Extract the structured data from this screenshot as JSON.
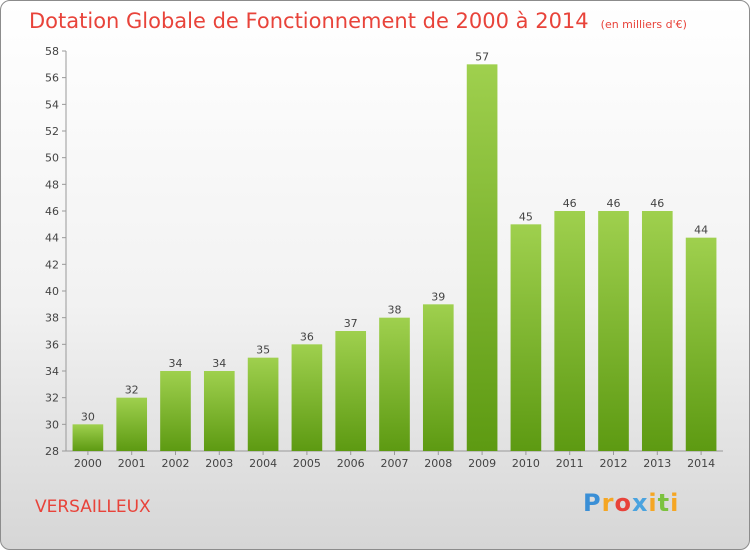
{
  "title": "Dotation Globale de Fonctionnement de 2000 à 2014",
  "subtitle": "(en milliers d'€)",
  "commune": "VERSAILLEUX",
  "logo": "Proxiti",
  "colors": {
    "bar_light": "#9fd04e",
    "bar_dark": "#5d9a12",
    "title": "#e8433a"
  },
  "chart_data": {
    "type": "bar",
    "categories": [
      "2000",
      "2001",
      "2002",
      "2003",
      "2004",
      "2005",
      "2006",
      "2007",
      "2008",
      "2009",
      "2010",
      "2011",
      "2012",
      "2013",
      "2014"
    ],
    "values": [
      30,
      32,
      34,
      34,
      35,
      36,
      37,
      38,
      39,
      57,
      45,
      46,
      46,
      46,
      44
    ],
    "ylim": [
      28,
      58
    ],
    "yticks": [
      28,
      30,
      32,
      34,
      36,
      38,
      40,
      42,
      44,
      46,
      48,
      50,
      52,
      54,
      56,
      58
    ],
    "grid": false
  }
}
